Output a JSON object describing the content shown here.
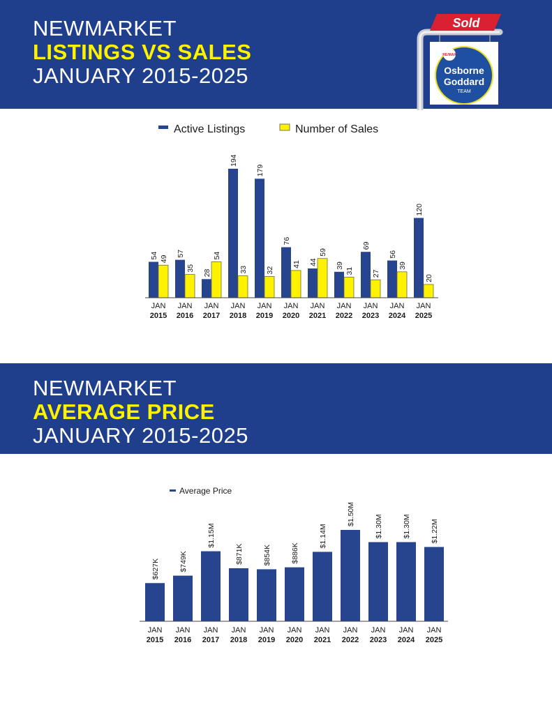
{
  "section1": {
    "title_line1": "NEWMARKET",
    "title_line2": "LISTINGS VS SALES",
    "title_line3": "JANUARY 2015-2025"
  },
  "section2": {
    "title_line1": "NEWMARKET",
    "title_line2": "AVERAGE PRICE",
    "title_line3": "JANUARY 2015-2025"
  },
  "logo": {
    "sign_text": "Sold",
    "brand_small": "RE/MAX",
    "name_line1": "Osborne",
    "name_line2": "Goddard",
    "name_line3": "TEAM"
  },
  "colors": {
    "banner": "#1f3f8d",
    "highlight": "#fff200",
    "bar_blue": "#27458f",
    "bar_yellow": "#fff200",
    "sign_red": "#d92131"
  },
  "chart_data": [
    {
      "type": "bar",
      "title": "",
      "categories": [
        [
          "JAN",
          "2015"
        ],
        [
          "JAN",
          "2016"
        ],
        [
          "JAN",
          "2017"
        ],
        [
          "JAN",
          "2018"
        ],
        [
          "JAN",
          "2019"
        ],
        [
          "JAN",
          "2020"
        ],
        [
          "JAN",
          "2021"
        ],
        [
          "JAN",
          "2022"
        ],
        [
          "JAN",
          "2023"
        ],
        [
          "JAN",
          "2024"
        ],
        [
          "JAN",
          "2025"
        ]
      ],
      "series": [
        {
          "name": "Active Listings",
          "color": "#27458f",
          "values": [
            54,
            57,
            28,
            194,
            179,
            76,
            44,
            39,
            69,
            56,
            120
          ]
        },
        {
          "name": "Number of Sales",
          "color": "#fff200",
          "values": [
            49,
            35,
            54,
            33,
            32,
            41,
            59,
            31,
            27,
            39,
            20
          ]
        }
      ],
      "legend": "top-center",
      "grid": false,
      "ylim": [
        0,
        194
      ]
    },
    {
      "type": "bar",
      "title": "",
      "categories": [
        [
          "JAN",
          "2015"
        ],
        [
          "JAN",
          "2016"
        ],
        [
          "JAN",
          "2017"
        ],
        [
          "JAN",
          "2018"
        ],
        [
          "JAN",
          "2019"
        ],
        [
          "JAN",
          "2020"
        ],
        [
          "JAN",
          "2021"
        ],
        [
          "JAN",
          "2022"
        ],
        [
          "JAN",
          "2023"
        ],
        [
          "JAN",
          "2024"
        ],
        [
          "JAN",
          "2025"
        ]
      ],
      "series": [
        {
          "name": "Average Price",
          "color": "#27458f",
          "values": [
            627000,
            749000,
            1150000,
            871000,
            854000,
            886000,
            1140000,
            1500000,
            1300000,
            1300000,
            1220000
          ],
          "labels": [
            "$627K",
            "$749K",
            "$1.15M",
            "$871K",
            "$854K",
            "$886K",
            "$1.14M",
            "$1.50M",
            "$1.30M",
            "$1.30M",
            "$1.22M"
          ]
        }
      ],
      "legend": "top-left",
      "grid": false,
      "ylim": [
        0,
        1500000
      ]
    }
  ]
}
